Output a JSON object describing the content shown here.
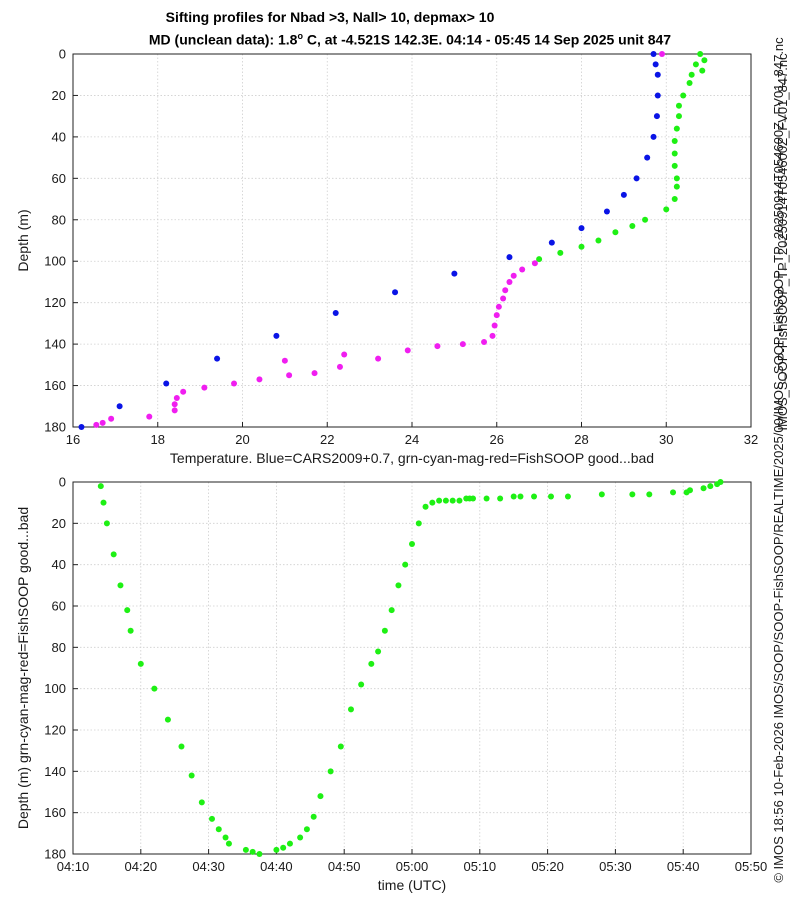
{
  "figure": {
    "title_line1": "Sifting profiles for Nbad >3, Nall> 10, depmax> 10",
    "title_line2_prefix": "MD (unclean data): 1.8",
    "title_line2_sup": "o",
    "title_line2_suffix": " C, at -4.521S 142.3E. 04:14 - 05:45 14 Sep 2025 unit 847",
    "side_label_top": "IMOS_SOOP-FishSOOP_TP_20250914T054600Z_FV01_847.nc",
    "side_label_bottom": "© IMOS 18:56 10-Feb-2026 IMOS/SOOP/SOOP-FishSOOP/REALTIME/2025/09/IMOS_SOOP-FishSOOP_TP_20250914T054600Z_FV01_847.nc"
  },
  "chart_data": [
    {
      "type": "scatter",
      "xlabel": "Temperature. Blue=CARS2009+0.7, grn-cyan-mag-red=FishSOOP good...bad",
      "ylabel": "Depth (m)",
      "xlim": [
        16,
        32
      ],
      "ylim": [
        180,
        0
      ],
      "y_reversed": true,
      "grid": true,
      "xticks": [
        16,
        18,
        20,
        22,
        24,
        26,
        28,
        30,
        32
      ],
      "yticks": [
        0,
        20,
        40,
        60,
        80,
        100,
        120,
        140,
        160,
        180
      ],
      "colors": {
        "blue": "#0a14e6",
        "green": "#1ef014",
        "magenta": "#f01ef0"
      },
      "series": [
        {
          "color": "blue",
          "x": [
            29.7,
            29.75,
            29.8,
            29.8,
            29.78,
            29.7,
            29.55,
            29.3,
            29.0,
            28.6,
            28.0,
            27.3,
            26.3,
            25.0,
            23.6,
            22.2,
            20.8,
            19.4,
            18.2,
            17.1,
            16.2
          ],
          "y": [
            0,
            5,
            10,
            20,
            30,
            40,
            50,
            60,
            68,
            76,
            84,
            91,
            98,
            106,
            115,
            125,
            136,
            147,
            159,
            170,
            180
          ]
        },
        {
          "color": "green",
          "x": [
            30.8,
            30.9,
            30.7,
            30.85,
            30.6,
            30.55,
            30.4,
            30.3,
            30.3,
            30.25,
            30.2,
            30.2,
            30.2,
            30.25,
            30.25,
            30.2,
            30.0,
            29.5,
            29.2,
            28.8,
            28.4,
            28.0,
            27.5,
            27.0
          ],
          "y": [
            0,
            3,
            5,
            8,
            10,
            14,
            20,
            25,
            30,
            36,
            42,
            48,
            54,
            60,
            64,
            70,
            75,
            80,
            83,
            86,
            90,
            93,
            96,
            99
          ]
        },
        {
          "color": "magenta",
          "x": [
            29.9,
            26.9,
            26.6,
            26.4,
            26.3,
            26.2,
            26.15,
            26.05,
            26.0,
            25.95,
            25.9,
            25.7,
            25.2,
            24.6,
            23.9,
            23.2,
            22.3,
            21.1,
            20.4,
            19.8,
            19.1,
            18.6,
            18.45,
            18.4,
            18.4,
            17.8,
            16.9,
            16.7,
            16.55,
            21.0,
            21.7,
            22.4
          ],
          "y": [
            0,
            101,
            104,
            107,
            110,
            114,
            118,
            122,
            126,
            131,
            136,
            139,
            140,
            141,
            143,
            147,
            151,
            155,
            157,
            159,
            161,
            163,
            166,
            169,
            172,
            175,
            176,
            178,
            179,
            148,
            154,
            145
          ]
        }
      ]
    },
    {
      "type": "scatter",
      "xlabel": "time (UTC)",
      "ylabel": "Depth (m) grn-cyan-mag-red=FishSOOP good...bad",
      "ylim": [
        180,
        0
      ],
      "y_reversed": true,
      "grid": true,
      "xticks": [
        "04:10",
        "04:20",
        "04:30",
        "04:40",
        "04:50",
        "05:00",
        "05:10",
        "05:20",
        "05:30",
        "05:40",
        "05:50"
      ],
      "yticks": [
        0,
        20,
        40,
        60,
        80,
        100,
        120,
        140,
        160,
        180
      ],
      "x_minutes_from": "04:10",
      "xlim": [
        0,
        100
      ],
      "series": [
        {
          "color": "green",
          "x": [
            4.1,
            4.5,
            5.0,
            6.0,
            7.0,
            8.0,
            8.5,
            10.0,
            12.0,
            14.0,
            16.0,
            17.5,
            19.0,
            20.5,
            21.5,
            22.5,
            23.0,
            25.5,
            26.5,
            27.5,
            30.0,
            31.0,
            32.0,
            33.5,
            34.5,
            35.5,
            36.5,
            38.0,
            39.5,
            41.0,
            42.5,
            44.0,
            45.0,
            46.0,
            47.0,
            48.0,
            49.0,
            50.0,
            51.0,
            52.0,
            53.0,
            54.0,
            55.0,
            56.0,
            57.0,
            58.0,
            58.5,
            59.0,
            61.0,
            63.0,
            65.0,
            66.0,
            68.0,
            70.5,
            73.0,
            78.0,
            82.5,
            85.0,
            88.5,
            90.5,
            91.0,
            93.0,
            94.0,
            95.0,
            95.5
          ],
          "y": [
            2,
            10,
            20,
            35,
            50,
            62,
            72,
            88,
            100,
            115,
            128,
            142,
            155,
            163,
            168,
            172,
            175,
            178,
            179,
            180,
            178,
            177,
            175,
            172,
            168,
            162,
            152,
            140,
            128,
            110,
            98,
            88,
            82,
            72,
            62,
            50,
            40,
            30,
            20,
            12,
            10,
            9,
            9,
            9,
            9,
            8,
            8,
            8,
            8,
            8,
            7,
            7,
            7,
            7,
            7,
            6,
            6,
            6,
            5,
            5,
            4,
            3,
            2,
            1,
            0
          ]
        }
      ]
    }
  ]
}
